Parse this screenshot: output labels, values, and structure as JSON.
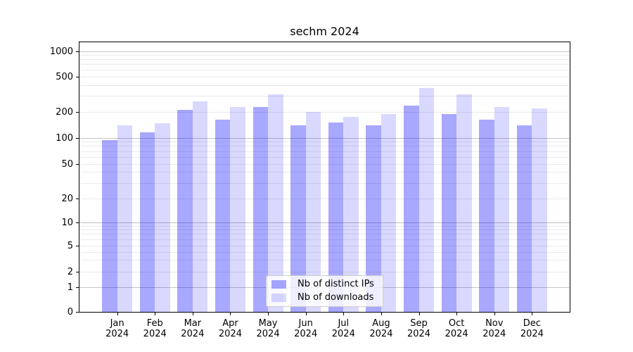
{
  "title": "sechm 2024",
  "legend": {
    "items": [
      {
        "label": "Nb of distinct IPs",
        "color": "rgba(0,0,255,0.34)"
      },
      {
        "label": "Nb of downloads",
        "color": "rgba(0,0,255,0.15)"
      }
    ]
  },
  "x_axis": {
    "year": "2024",
    "months": [
      "Jan",
      "Feb",
      "Mar",
      "Apr",
      "May",
      "Jun",
      "Jul",
      "Aug",
      "Sep",
      "Oct",
      "Nov",
      "Dec"
    ]
  },
  "y_axis": {
    "tick_labels": [
      "1000",
      "500",
      "200",
      "100",
      "50",
      "20",
      "10",
      "5",
      "2",
      "1",
      "0"
    ],
    "tick_values": [
      1000,
      500,
      200,
      100,
      50,
      20,
      10,
      5,
      2,
      1,
      0
    ]
  },
  "grid": {
    "major_values": [
      1,
      10,
      100,
      1000
    ],
    "minor_values": [
      2,
      3,
      4,
      5,
      6,
      7,
      8,
      9,
      20,
      30,
      40,
      50,
      60,
      70,
      80,
      90,
      200,
      300,
      400,
      500,
      600,
      700,
      800,
      900
    ]
  },
  "colors": {
    "major_grid": "#c3c3c3",
    "minor_grid": "#eaeaea",
    "axis": "#000000",
    "background": "#ffffff",
    "series_ips": "rgba(0,0,255,0.34)",
    "series_downloads": "rgba(0,0,255,0.15)"
  },
  "chart_data": {
    "type": "bar",
    "title": "sechm 2024",
    "categories": [
      "Jan 2024",
      "Feb 2024",
      "Mar 2024",
      "Apr 2024",
      "May 2024",
      "Jun 2024",
      "Jul 2024",
      "Aug 2024",
      "Sep 2024",
      "Oct 2024",
      "Nov 2024",
      "Dec 2024"
    ],
    "series": [
      {
        "name": "Nb of distinct IPs",
        "values": [
          95,
          116,
          211,
          163,
          229,
          141,
          150,
          139,
          235,
          188,
          164,
          140
        ]
      },
      {
        "name": "Nb of downloads",
        "values": [
          139,
          147,
          261,
          227,
          318,
          200,
          176,
          189,
          372,
          314,
          227,
          219
        ]
      }
    ],
    "xlabel": "",
    "ylabel": "",
    "yscale": "log-like with 0 baseline (ticks 0,1,2,5,10,20,50,100,200,500,1000)",
    "ylim": [
      0,
      1260
    ],
    "grid": "horizontal major + minor gridlines",
    "legend_position": "lower center inside axes"
  }
}
